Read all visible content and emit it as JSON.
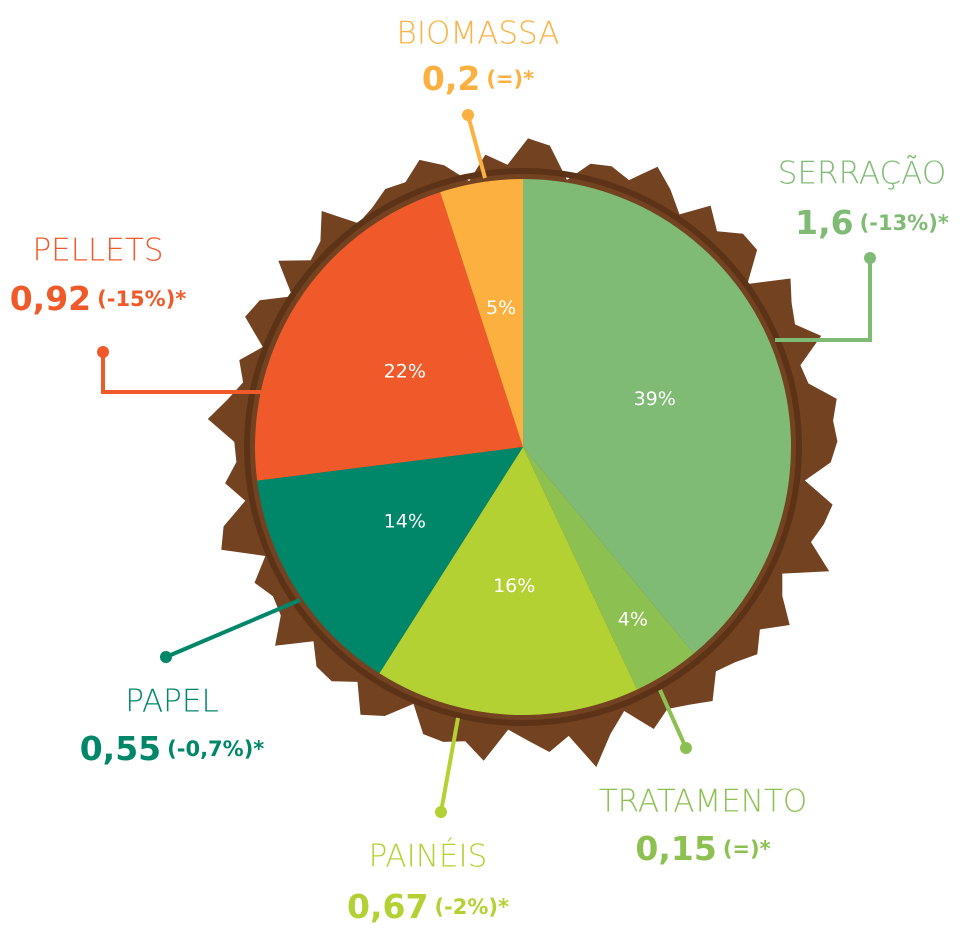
{
  "chart_data": {
    "type": "pie",
    "categories": [
      "SERRAÇÃO",
      "TRATAMENTO",
      "PAINÉIS",
      "PAPEL",
      "PELLETS",
      "BIOMASSA"
    ],
    "values": [
      39,
      4,
      16,
      14,
      22,
      5
    ],
    "value_labels": [
      "39%",
      "4%",
      "16%",
      "14%",
      "22%",
      "5%"
    ],
    "colors": [
      "#7fbb74",
      "#8cc152",
      "#b3d133",
      "#00876a",
      "#f05a2b",
      "#fbb040"
    ],
    "amount_labels": [
      "1,6",
      "0,15",
      "0,67",
      "0,55",
      "0,92",
      "0,2"
    ],
    "change_labels": [
      "(-13%)*",
      "(=)*",
      "(-2%)*",
      "(-0,7%)*",
      "(-15%)*",
      "(=)*"
    ]
  }
}
